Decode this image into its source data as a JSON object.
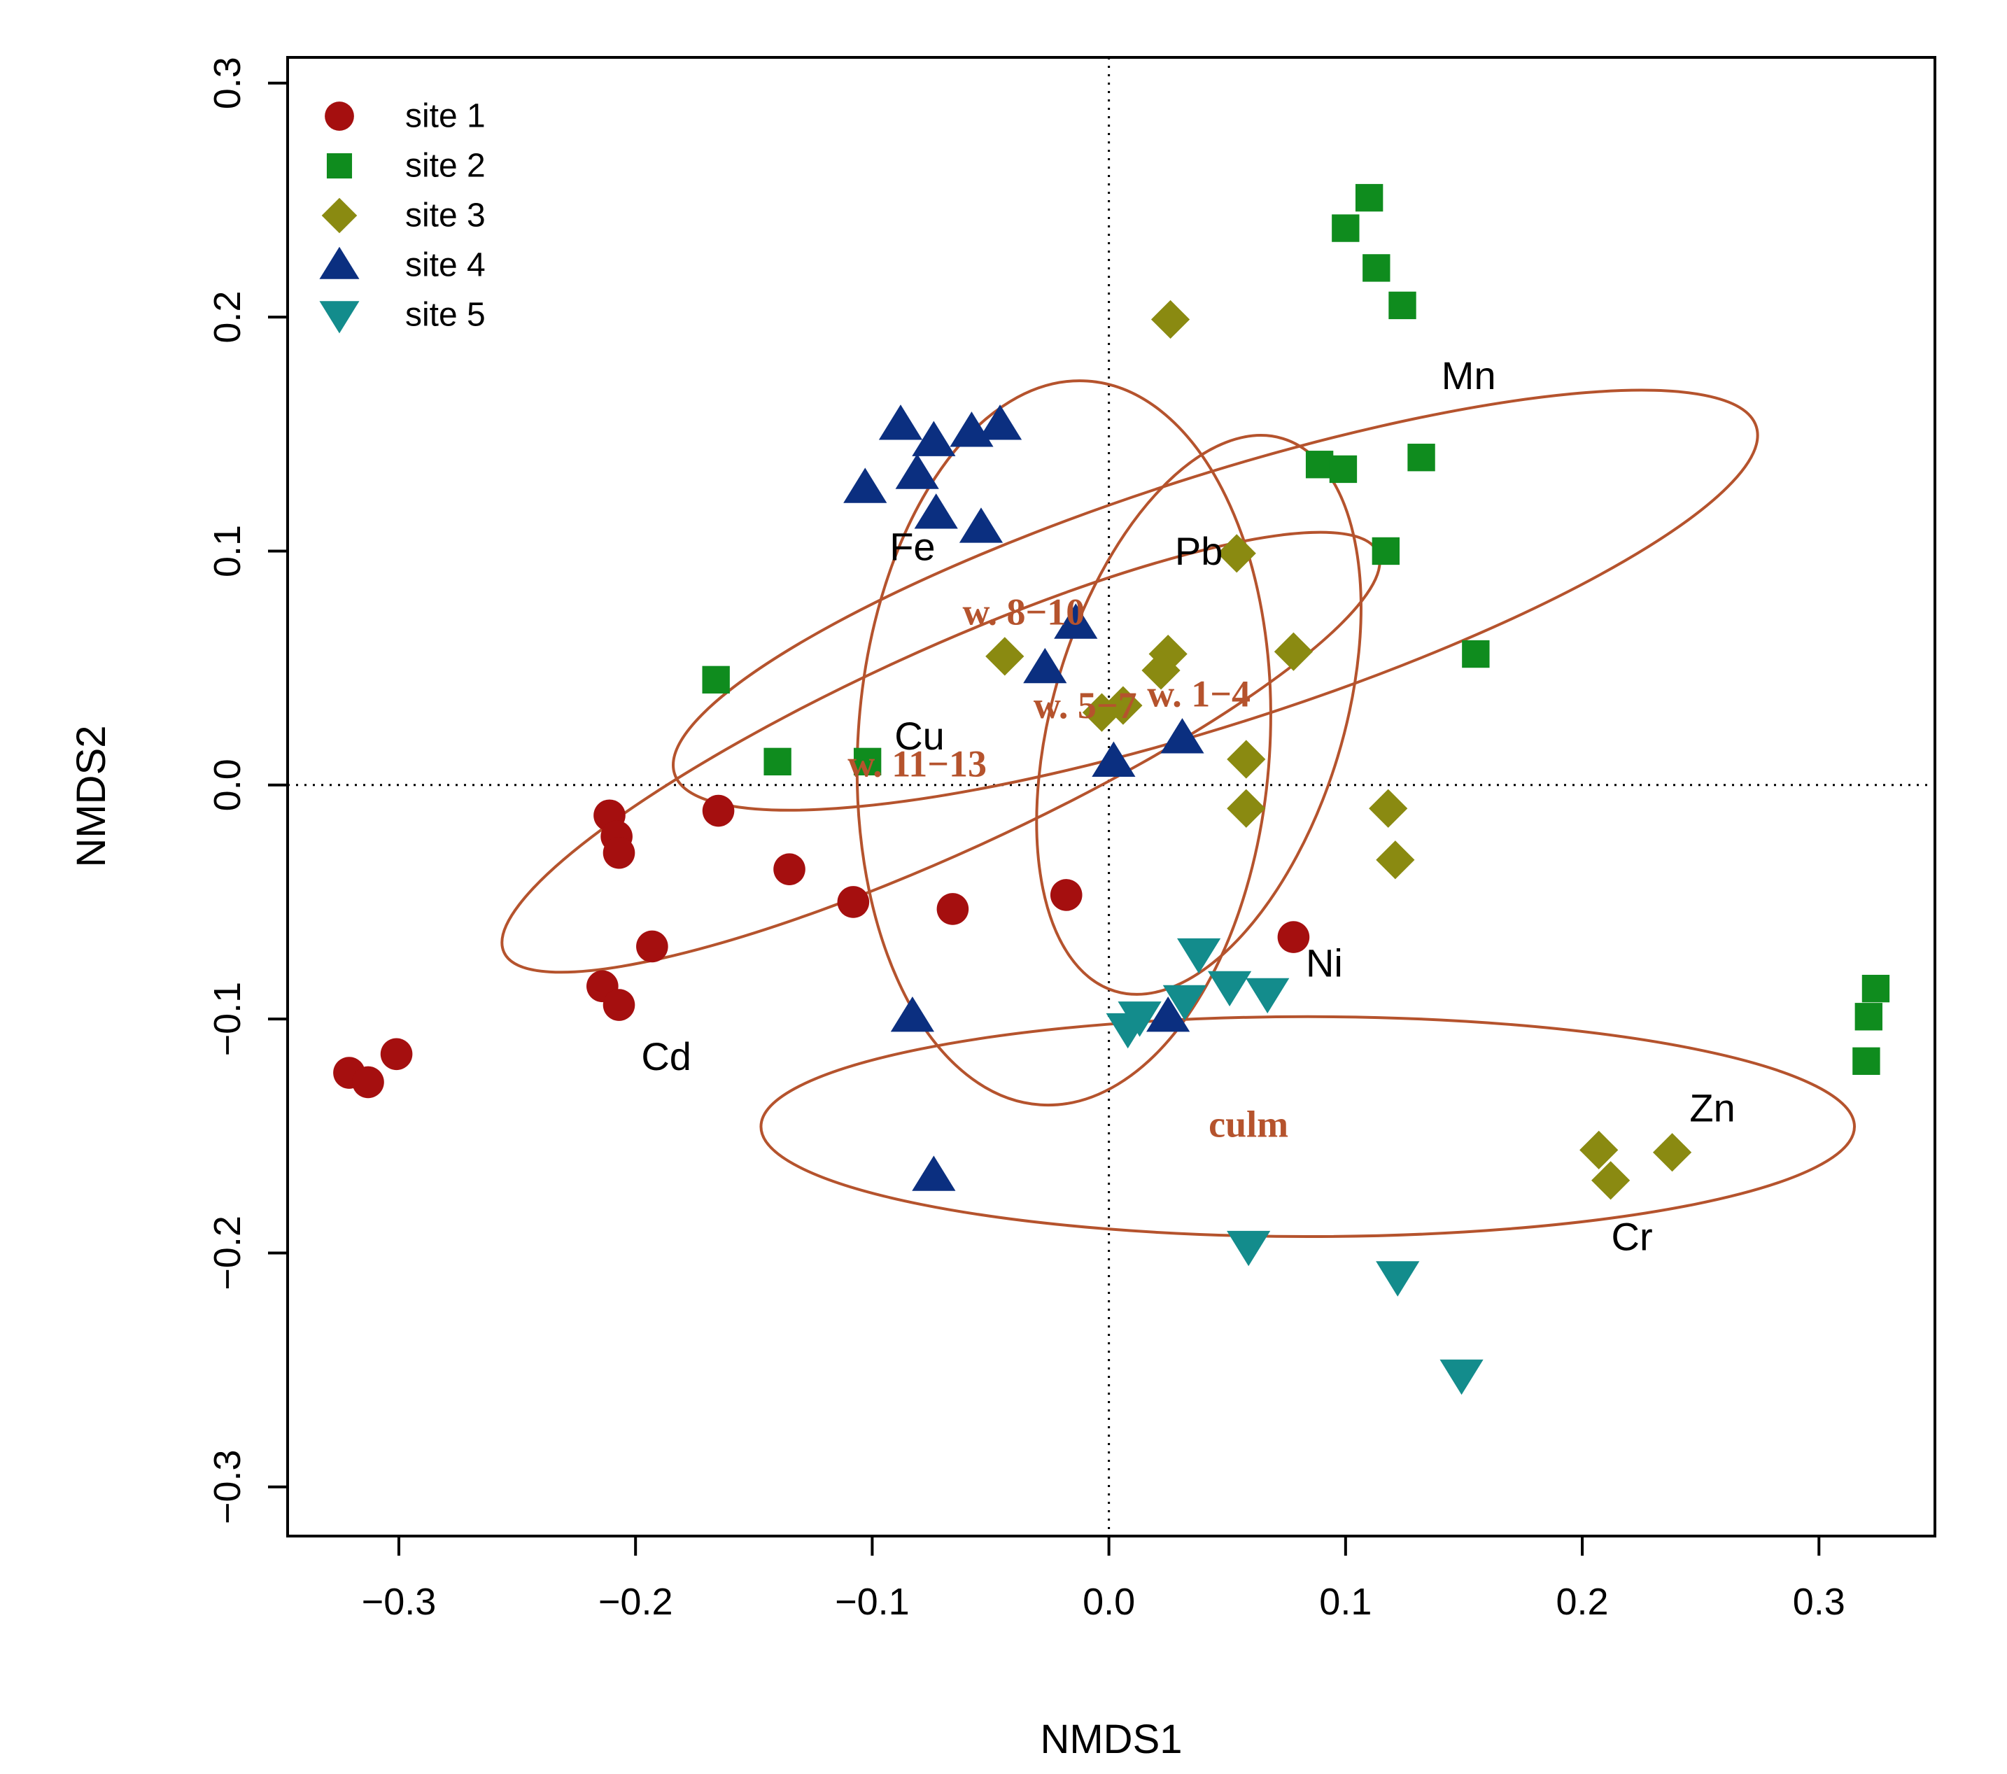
{
  "chart_data": {
    "type": "scatter",
    "title": "",
    "xlabel": "NMDS1",
    "ylabel": "NMDS2",
    "xlim": [
      -0.347,
      0.349
    ],
    "ylim": [
      -0.321,
      0.311
    ],
    "xticks": [
      "-0.3",
      "-0.2",
      "-0.1",
      "0.0",
      "0.1",
      "0.2",
      "0.3"
    ],
    "xtick_values": [
      -0.3,
      -0.2,
      -0.1,
      0.0,
      0.1,
      0.2,
      0.3
    ],
    "yticks": [
      "-0.3",
      "-0.2",
      "-0.1",
      "0.0",
      "0.1",
      "0.2",
      "0.3"
    ],
    "ytick_values": [
      -0.3,
      -0.2,
      -0.1,
      0.0,
      0.1,
      0.2,
      0.3
    ],
    "reference_lines": {
      "x": 0,
      "y": 0,
      "style": "dotted"
    },
    "legend": {
      "position": "top-left"
    },
    "series": [
      {
        "name": "site 1",
        "marker": "circle",
        "color": "#a50f0f",
        "x": [
          -0.301,
          -0.321,
          -0.313,
          -0.214,
          -0.207,
          -0.193,
          -0.211,
          -0.208,
          -0.207,
          -0.165,
          -0.135,
          -0.108,
          -0.066,
          -0.018,
          0.078
        ],
        "y": [
          -0.115,
          -0.123,
          -0.127,
          -0.086,
          -0.094,
          -0.069,
          -0.013,
          -0.022,
          -0.029,
          -0.011,
          -0.036,
          -0.05,
          -0.053,
          -0.047,
          -0.065
        ]
      },
      {
        "name": "site 2",
        "marker": "square",
        "color": "#0f8c1e",
        "x": [
          0.11,
          0.1,
          0.113,
          0.124,
          0.089,
          0.099,
          0.132,
          0.117,
          0.155,
          -0.166,
          -0.14,
          -0.102,
          0.324,
          0.321,
          0.32
        ],
        "y": [
          0.251,
          0.238,
          0.221,
          0.205,
          0.137,
          0.135,
          0.14,
          0.1,
          0.056,
          0.045,
          0.01,
          0.01,
          -0.087,
          -0.099,
          -0.118
        ]
      },
      {
        "name": "site 3",
        "marker": "diamond",
        "color": "#8a8a11",
        "x": [
          0.026,
          0.054,
          -0.044,
          0.025,
          0.022,
          0.078,
          -0.003,
          0.006,
          0.058,
          0.058,
          0.118,
          0.121,
          0.207,
          0.212,
          0.238
        ],
        "y": [
          0.199,
          0.099,
          0.055,
          0.056,
          0.049,
          0.057,
          0.031,
          0.034,
          0.011,
          -0.01,
          -0.01,
          -0.032,
          -0.156,
          -0.169,
          -0.157
        ]
      },
      {
        "name": "site 4",
        "marker": "triangle-up",
        "color": "#0b2f80",
        "x": [
          -0.088,
          -0.074,
          -0.058,
          -0.046,
          -0.103,
          -0.081,
          -0.073,
          -0.054,
          -0.014,
          -0.027,
          0.031,
          0.002,
          -0.083,
          0.025,
          -0.074
        ],
        "y": [
          0.154,
          0.147,
          0.151,
          0.154,
          0.127,
          0.133,
          0.116,
          0.11,
          0.069,
          0.05,
          0.02,
          0.01,
          -0.099,
          -0.099,
          -0.167
        ]
      },
      {
        "name": "site 5",
        "marker": "triangle-down",
        "color": "#138c8c",
        "x": [
          0.038,
          0.051,
          0.067,
          0.032,
          0.013,
          0.008,
          0.059,
          0.122,
          0.149
        ],
        "y": [
          -0.072,
          -0.086,
          -0.089,
          -0.092,
          -0.099,
          -0.104,
          -0.197,
          -0.21,
          -0.252
        ]
      }
    ],
    "variable_labels": [
      {
        "text": "Mn",
        "x": 0.152,
        "y": 0.175
      },
      {
        "text": "Fe",
        "x": -0.083,
        "y": 0.102
      },
      {
        "text": "Pb",
        "x": 0.038,
        "y": 0.1
      },
      {
        "text": "Cu",
        "x": -0.08,
        "y": 0.021
      },
      {
        "text": "Ni",
        "x": 0.091,
        "y": -0.076
      },
      {
        "text": "Cd",
        "x": -0.187,
        "y": -0.116
      },
      {
        "text": "Zn",
        "x": 0.255,
        "y": -0.138
      },
      {
        "text": "Cr",
        "x": 0.221,
        "y": -0.193
      }
    ],
    "group_ellipses": [
      {
        "name": "w. 8-10",
        "label": "w. 8−10",
        "cx": 0.045,
        "cy": 0.079,
        "rx": 0.24,
        "ry": 0.053,
        "angle_deg": 17.8,
        "label_x": -0.036,
        "label_y": 0.074
      },
      {
        "name": "w. 11-13",
        "label": "w. 11−13",
        "cx": -0.071,
        "cy": 0.014,
        "rx": 0.203,
        "ry": 0.043,
        "angle_deg": 24.6,
        "label_x": -0.081,
        "label_y": 0.009
      },
      {
        "name": "w. 5-7",
        "label": "w. 5−7",
        "cx": -0.019,
        "cy": 0.018,
        "rx": 0.087,
        "ry": 0.155,
        "angle_deg": -3.7,
        "label_x": -0.01,
        "label_y": 0.034
      },
      {
        "name": "w. 1-4",
        "label": "w. 1−4",
        "cx": 0.038,
        "cy": 0.03,
        "rx": 0.122,
        "ry": 0.062,
        "angle_deg": 73.1,
        "label_x": 0.038,
        "label_y": 0.039
      },
      {
        "name": "culm",
        "label": "culm",
        "cx": 0.084,
        "cy": -0.146,
        "rx": 0.231,
        "ry": 0.047,
        "angle_deg": 0.0,
        "label_x": 0.059,
        "label_y": -0.145
      }
    ]
  }
}
